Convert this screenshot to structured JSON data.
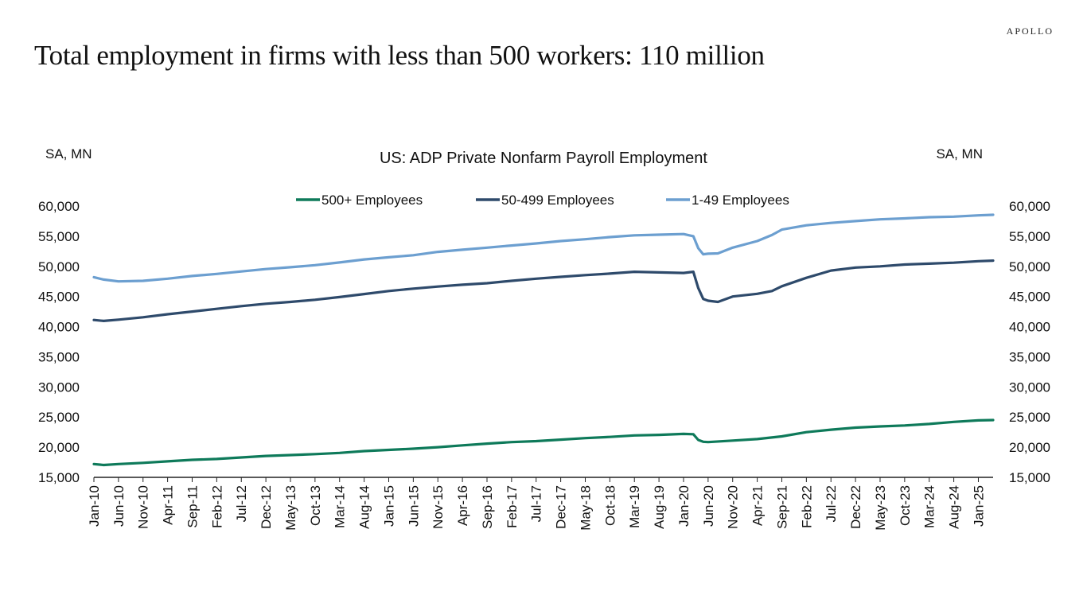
{
  "brand": "APOLLO",
  "headline": "Total employment in firms with less than 500 workers: 110 million",
  "colors": {
    "series_500_plus": "#0e7a5a",
    "series_50_499": "#2e4a6b",
    "series_1_49": "#6c9fd0",
    "axis": "#222222"
  },
  "chart_data": {
    "type": "line",
    "title": "US: ADP Private Nonfarm Payroll Employment",
    "left_axis_unit": "SA, MN",
    "right_axis_unit": "SA, MN",
    "ylim": [
      15000,
      60000
    ],
    "yticks": [
      "15,000",
      "20,000",
      "25,000",
      "30,000",
      "35,000",
      "40,000",
      "45,000",
      "50,000",
      "55,000",
      "60,000"
    ],
    "y_tick_values": [
      15000,
      20000,
      25000,
      30000,
      35000,
      40000,
      45000,
      50000,
      55000,
      60000
    ],
    "xlim": [
      "2010-01",
      "2025-04"
    ],
    "xtick_labels": [
      "Jan-10",
      "Jun-10",
      "Nov-10",
      "Apr-11",
      "Sep-11",
      "Feb-12",
      "Jul-12",
      "Dec-12",
      "May-13",
      "Oct-13",
      "Mar-14",
      "Aug-14",
      "Jan-15",
      "Jun-15",
      "Nov-15",
      "Apr-16",
      "Sep-16",
      "Feb-17",
      "Jul-17",
      "Dec-17",
      "May-18",
      "Oct-18",
      "Mar-19",
      "Aug-19",
      "Jan-20",
      "Jun-20",
      "Nov-20",
      "Apr-21",
      "Sep-21",
      "Feb-22",
      "Jul-22",
      "Dec-22",
      "May-23",
      "Oct-23",
      "Mar-24",
      "Aug-24",
      "Jan-25"
    ],
    "xtick_dates": [
      "2010-01",
      "2010-06",
      "2010-11",
      "2011-04",
      "2011-09",
      "2012-02",
      "2012-07",
      "2012-12",
      "2013-05",
      "2013-10",
      "2014-03",
      "2014-08",
      "2015-01",
      "2015-06",
      "2015-11",
      "2016-04",
      "2016-09",
      "2017-02",
      "2017-07",
      "2017-12",
      "2018-05",
      "2018-10",
      "2019-03",
      "2019-08",
      "2020-01",
      "2020-06",
      "2020-11",
      "2021-04",
      "2021-09",
      "2022-02",
      "2022-07",
      "2022-12",
      "2023-05",
      "2023-10",
      "2024-03",
      "2024-08",
      "2025-01"
    ],
    "legend_position": "top-center",
    "series": [
      {
        "name": "500+ Employees",
        "color_key": "series_500_plus",
        "points": [
          [
            "2010-01",
            17200
          ],
          [
            "2010-03",
            17050
          ],
          [
            "2010-06",
            17200
          ],
          [
            "2010-11",
            17400
          ],
          [
            "2011-04",
            17650
          ],
          [
            "2011-09",
            17900
          ],
          [
            "2012-02",
            18050
          ],
          [
            "2012-07",
            18300
          ],
          [
            "2012-12",
            18550
          ],
          [
            "2013-05",
            18700
          ],
          [
            "2013-10",
            18850
          ],
          [
            "2014-03",
            19050
          ],
          [
            "2014-08",
            19350
          ],
          [
            "2015-01",
            19550
          ],
          [
            "2015-06",
            19750
          ],
          [
            "2015-11",
            20000
          ],
          [
            "2016-04",
            20300
          ],
          [
            "2016-09",
            20600
          ],
          [
            "2017-02",
            20850
          ],
          [
            "2017-07",
            21000
          ],
          [
            "2017-12",
            21250
          ],
          [
            "2018-05",
            21500
          ],
          [
            "2018-10",
            21700
          ],
          [
            "2019-03",
            21950
          ],
          [
            "2019-08",
            22050
          ],
          [
            "2020-01",
            22200
          ],
          [
            "2020-03",
            22150
          ],
          [
            "2020-04",
            21200
          ],
          [
            "2020-05",
            20900
          ],
          [
            "2020-06",
            20850
          ],
          [
            "2020-11",
            21100
          ],
          [
            "2021-04",
            21350
          ],
          [
            "2021-09",
            21800
          ],
          [
            "2022-02",
            22500
          ],
          [
            "2022-07",
            22900
          ],
          [
            "2022-12",
            23250
          ],
          [
            "2023-05",
            23450
          ],
          [
            "2023-10",
            23600
          ],
          [
            "2024-03",
            23850
          ],
          [
            "2024-08",
            24200
          ],
          [
            "2025-01",
            24450
          ],
          [
            "2025-04",
            24500
          ]
        ]
      },
      {
        "name": "50-499 Employees",
        "color_key": "series_50_499",
        "points": [
          [
            "2010-01",
            41100
          ],
          [
            "2010-03",
            40950
          ],
          [
            "2010-06",
            41150
          ],
          [
            "2010-11",
            41550
          ],
          [
            "2011-04",
            42050
          ],
          [
            "2011-09",
            42500
          ],
          [
            "2012-02",
            42950
          ],
          [
            "2012-07",
            43400
          ],
          [
            "2012-12",
            43800
          ],
          [
            "2013-05",
            44100
          ],
          [
            "2013-10",
            44450
          ],
          [
            "2014-03",
            44900
          ],
          [
            "2014-08",
            45400
          ],
          [
            "2015-01",
            45900
          ],
          [
            "2015-06",
            46300
          ],
          [
            "2015-11",
            46650
          ],
          [
            "2016-04",
            46950
          ],
          [
            "2016-09",
            47200
          ],
          [
            "2017-02",
            47600
          ],
          [
            "2017-07",
            47950
          ],
          [
            "2017-12",
            48250
          ],
          [
            "2018-05",
            48550
          ],
          [
            "2018-10",
            48800
          ],
          [
            "2019-03",
            49100
          ],
          [
            "2019-08",
            49000
          ],
          [
            "2020-01",
            48900
          ],
          [
            "2020-03",
            49100
          ],
          [
            "2020-04",
            46400
          ],
          [
            "2020-05",
            44600
          ],
          [
            "2020-06",
            44300
          ],
          [
            "2020-08",
            44100
          ],
          [
            "2020-11",
            45000
          ],
          [
            "2021-04",
            45450
          ],
          [
            "2021-07",
            45900
          ],
          [
            "2021-09",
            46700
          ],
          [
            "2022-02",
            48100
          ],
          [
            "2022-07",
            49300
          ],
          [
            "2022-12",
            49800
          ],
          [
            "2023-05",
            50000
          ],
          [
            "2023-10",
            50300
          ],
          [
            "2024-03",
            50450
          ],
          [
            "2024-08",
            50600
          ],
          [
            "2025-01",
            50850
          ],
          [
            "2025-04",
            50950
          ]
        ]
      },
      {
        "name": "1-49 Employees",
        "color_key": "series_1_49",
        "points": [
          [
            "2010-01",
            48200
          ],
          [
            "2010-03",
            47800
          ],
          [
            "2010-06",
            47500
          ],
          [
            "2010-11",
            47600
          ],
          [
            "2011-04",
            47950
          ],
          [
            "2011-09",
            48400
          ],
          [
            "2012-02",
            48750
          ],
          [
            "2012-07",
            49150
          ],
          [
            "2012-12",
            49550
          ],
          [
            "2013-05",
            49850
          ],
          [
            "2013-10",
            50200
          ],
          [
            "2014-03",
            50650
          ],
          [
            "2014-08",
            51150
          ],
          [
            "2015-01",
            51500
          ],
          [
            "2015-06",
            51850
          ],
          [
            "2015-11",
            52400
          ],
          [
            "2016-04",
            52750
          ],
          [
            "2016-09",
            53100
          ],
          [
            "2017-02",
            53450
          ],
          [
            "2017-07",
            53800
          ],
          [
            "2017-12",
            54200
          ],
          [
            "2018-05",
            54500
          ],
          [
            "2018-10",
            54850
          ],
          [
            "2019-03",
            55150
          ],
          [
            "2019-08",
            55250
          ],
          [
            "2020-01",
            55350
          ],
          [
            "2020-03",
            55000
          ],
          [
            "2020-04",
            53000
          ],
          [
            "2020-05",
            52000
          ],
          [
            "2020-06",
            52100
          ],
          [
            "2020-08",
            52150
          ],
          [
            "2020-11",
            53100
          ],
          [
            "2021-04",
            54200
          ],
          [
            "2021-07",
            55200
          ],
          [
            "2021-09",
            56100
          ],
          [
            "2022-02",
            56800
          ],
          [
            "2022-07",
            57200
          ],
          [
            "2022-12",
            57500
          ],
          [
            "2023-05",
            57800
          ],
          [
            "2023-10",
            57950
          ],
          [
            "2024-03",
            58150
          ],
          [
            "2024-08",
            58250
          ],
          [
            "2025-01",
            58450
          ],
          [
            "2025-04",
            58550
          ]
        ]
      }
    ]
  }
}
